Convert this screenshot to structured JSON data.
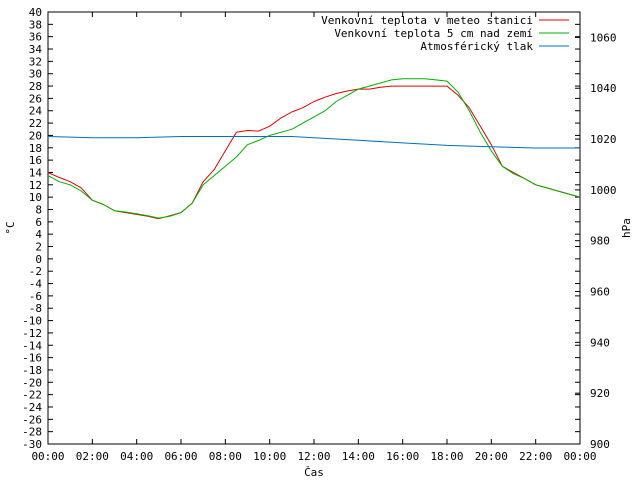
{
  "chart_data": {
    "type": "line",
    "title": "",
    "xlabel": "Čas",
    "ylabel": "°C",
    "y2label": "hPa",
    "x_ticks": [
      "00:00",
      "02:00",
      "04:00",
      "06:00",
      "08:00",
      "10:00",
      "12:00",
      "14:00",
      "16:00",
      "18:00",
      "20:00",
      "22:00",
      "00:00"
    ],
    "xlim_hours": [
      0,
      24
    ],
    "ylim": [
      -30,
      40
    ],
    "y_ticks": [
      40,
      38,
      36,
      34,
      32,
      30,
      28,
      26,
      24,
      22,
      20,
      18,
      16,
      14,
      12,
      10,
      8,
      6,
      4,
      2,
      0,
      -2,
      -4,
      -6,
      -8,
      -10,
      -12,
      -14,
      -16,
      -18,
      -20,
      -22,
      -24,
      -26,
      -28,
      -30
    ],
    "y2lim": [
      900,
      1070
    ],
    "y2_ticks": [
      1060,
      1040,
      1020,
      1000,
      980,
      960,
      940,
      920,
      900
    ],
    "grid": false,
    "legend_position": "top-right",
    "series": [
      {
        "name": "Venkovní teplota v meteo stanici",
        "color": "#e00000",
        "axis": "left",
        "x": [
          0,
          0.5,
          1,
          1.5,
          2,
          2.5,
          3,
          3.5,
          4,
          4.5,
          5,
          5.5,
          6,
          6.5,
          7,
          7.5,
          8,
          8.5,
          9,
          9.5,
          10,
          10.5,
          11,
          11.5,
          12,
          12.5,
          13,
          13.5,
          14,
          14.5,
          15,
          15.5,
          16,
          16.5,
          17,
          17.5,
          18,
          18.5,
          19,
          19.5,
          20,
          20.5,
          21,
          21.5,
          22,
          22.5,
          23,
          23.5,
          24
        ],
        "values": [
          14,
          13.2,
          12.5,
          11.5,
          9.5,
          8.8,
          7.8,
          7.5,
          7.2,
          6.9,
          6.5,
          7,
          7.5,
          9,
          12.5,
          14.5,
          17.5,
          20.5,
          20.8,
          20.7,
          21.5,
          22.8,
          23.8,
          24.5,
          25.5,
          26.2,
          26.8,
          27.2,
          27.5,
          27.5,
          27.8,
          28,
          28,
          28,
          28,
          28,
          28,
          26.5,
          24.5,
          21.5,
          18.5,
          15,
          14,
          13,
          12,
          11.5,
          11,
          10.5,
          10
        ]
      },
      {
        "name": "Venkovní teplota 5 cm nad zemí",
        "color": "#00b000",
        "axis": "left",
        "x": [
          0,
          0.5,
          1,
          1.5,
          2,
          2.5,
          3,
          3.5,
          4,
          4.5,
          5,
          5.5,
          6,
          6.5,
          7,
          7.5,
          8,
          8.5,
          9,
          9.5,
          10,
          10.5,
          11,
          11.5,
          12,
          12.5,
          13,
          13.5,
          14,
          14.5,
          15,
          15.5,
          16,
          16.5,
          17,
          17.5,
          18,
          18.5,
          19,
          19.5,
          20,
          20.5,
          21,
          21.5,
          22,
          22.5,
          23,
          23.5,
          24
        ],
        "values": [
          13.5,
          12.5,
          12,
          11,
          9.5,
          8.8,
          7.8,
          7.6,
          7.3,
          7,
          6.6,
          6.9,
          7.5,
          9,
          12,
          13.5,
          15,
          16.5,
          18.5,
          19.2,
          20,
          20.5,
          21,
          22,
          23,
          24,
          25.5,
          26.5,
          27.5,
          28,
          28.5,
          29,
          29.2,
          29.2,
          29.2,
          29,
          28.8,
          27,
          24,
          20.5,
          17.5,
          15,
          13.8,
          13,
          12,
          11.5,
          11,
          10.5,
          10
        ]
      },
      {
        "name": "Atmosférický tlak",
        "color": "#0070c0",
        "axis": "right",
        "x": [
          0,
          2,
          4,
          6,
          8,
          10,
          11,
          12,
          14,
          16,
          18,
          20,
          22,
          24
        ],
        "values": [
          1021,
          1020.5,
          1020.5,
          1021,
          1021,
          1021,
          1021,
          1020.5,
          1019.5,
          1018.5,
          1017.5,
          1017,
          1016.5,
          1016.5
        ]
      }
    ]
  }
}
